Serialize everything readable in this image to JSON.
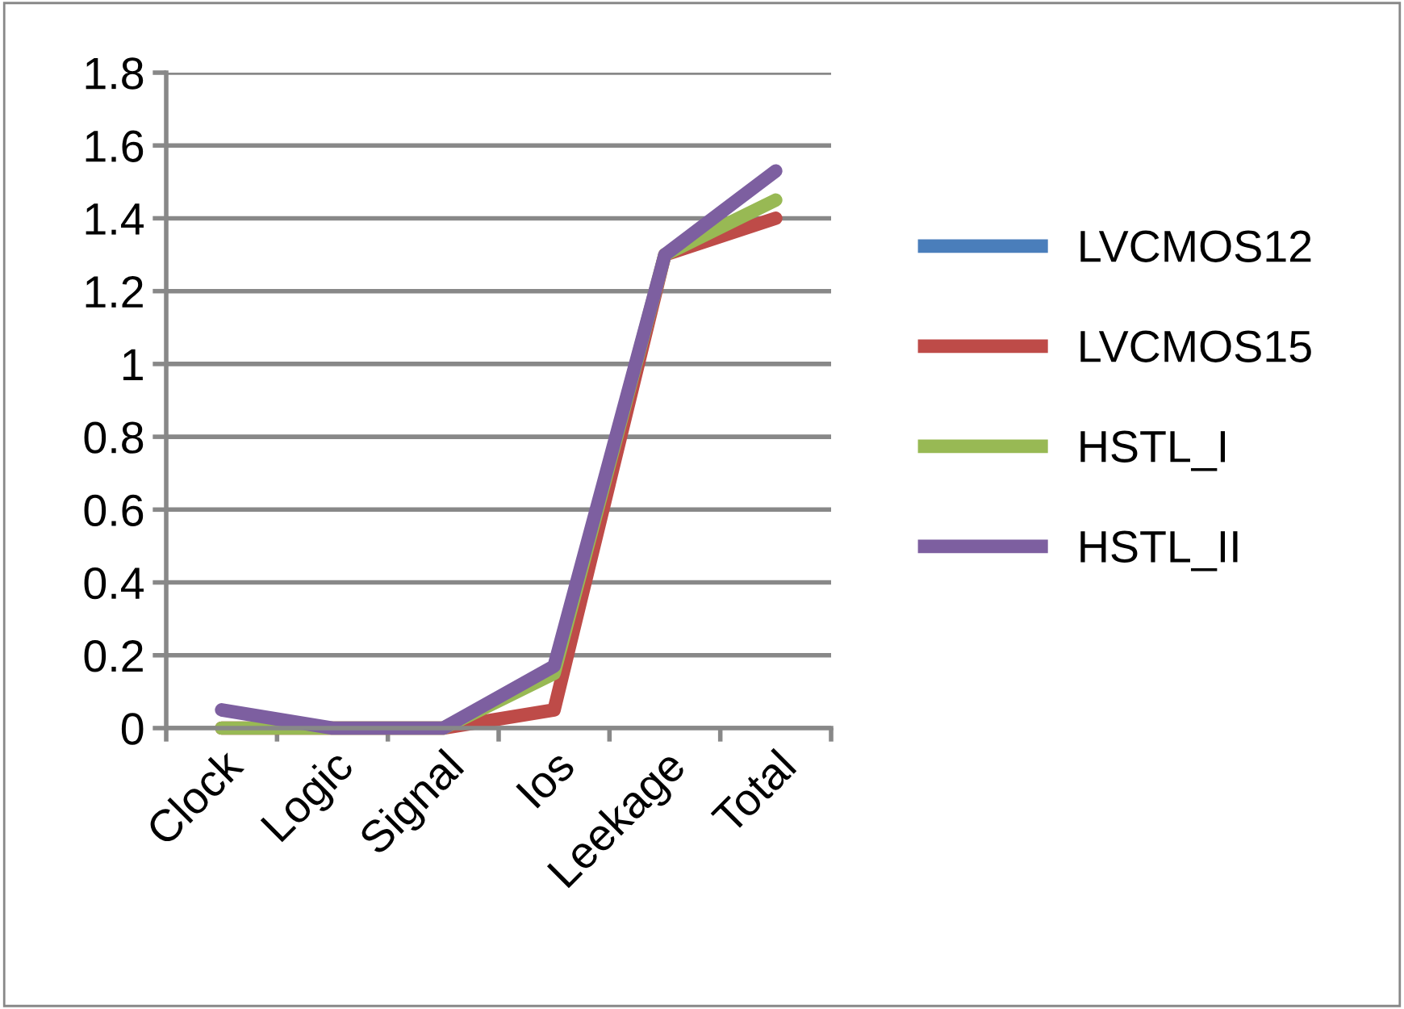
{
  "chart_data": {
    "type": "line",
    "categories": [
      "Clock",
      "Logic",
      "Signal",
      "Ios",
      "Leekage",
      "Total"
    ],
    "series": [
      {
        "name": "LVCMOS12",
        "color": "#4a7ebb",
        "values": [
          null,
          null,
          null,
          null,
          null,
          null
        ]
      },
      {
        "name": "LVCMOS15",
        "color": "#be4b48",
        "values": [
          0,
          0,
          0,
          0.05,
          1.3,
          1.4
        ]
      },
      {
        "name": "HSTL_I",
        "color": "#98b954",
        "values": [
          0,
          0,
          0,
          0.15,
          1.3,
          1.45
        ]
      },
      {
        "name": "HSTL_II",
        "color": "#7d5fa0",
        "values": [
          0.05,
          0,
          0,
          0.17,
          1.3,
          1.53
        ]
      }
    ],
    "ylim": [
      0,
      1.8
    ],
    "yticks": [
      0,
      0.2,
      0.4,
      0.6,
      0.8,
      1,
      1.2,
      1.4,
      1.6,
      1.8
    ],
    "grid": "y",
    "legend": "right",
    "marker": "none",
    "line_style": "solid"
  }
}
